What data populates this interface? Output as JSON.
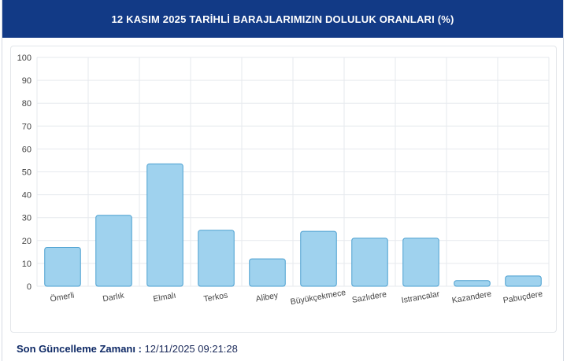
{
  "header": {
    "title": "12 KASIM 2025 TARİHLİ BARAJLARIMIZIN DOLULUK ORANLARI (%)"
  },
  "footer": {
    "label": "Son Güncelleme Zamanı :",
    "value": "12/11/2025 09:21:28"
  },
  "colors": {
    "header_bg": "#123a86",
    "bar_fill": "#9fd2ee",
    "bar_stroke": "#4a9fd0",
    "grid": "#e6e9ee"
  },
  "chart_data": {
    "type": "bar",
    "title": "12 KASIM 2025 TARİHLİ BARAJLARIMIZIN DOLULUK ORANLARI (%)",
    "categories": [
      "Ömerli",
      "Darlık",
      "Elmalı",
      "Terkos",
      "Alibey",
      "Büyükçekmece",
      "Sazlıdere",
      "Istrancalar",
      "Kazandere",
      "Pabuçdere"
    ],
    "values": [
      17,
      31,
      53.5,
      24.5,
      12,
      24,
      21,
      21,
      2.5,
      4.5
    ],
    "ylim": [
      0,
      100
    ],
    "yticks": [
      0,
      10,
      20,
      30,
      40,
      50,
      60,
      70,
      80,
      90,
      100
    ],
    "grid": true,
    "xlabel": "",
    "ylabel": ""
  }
}
